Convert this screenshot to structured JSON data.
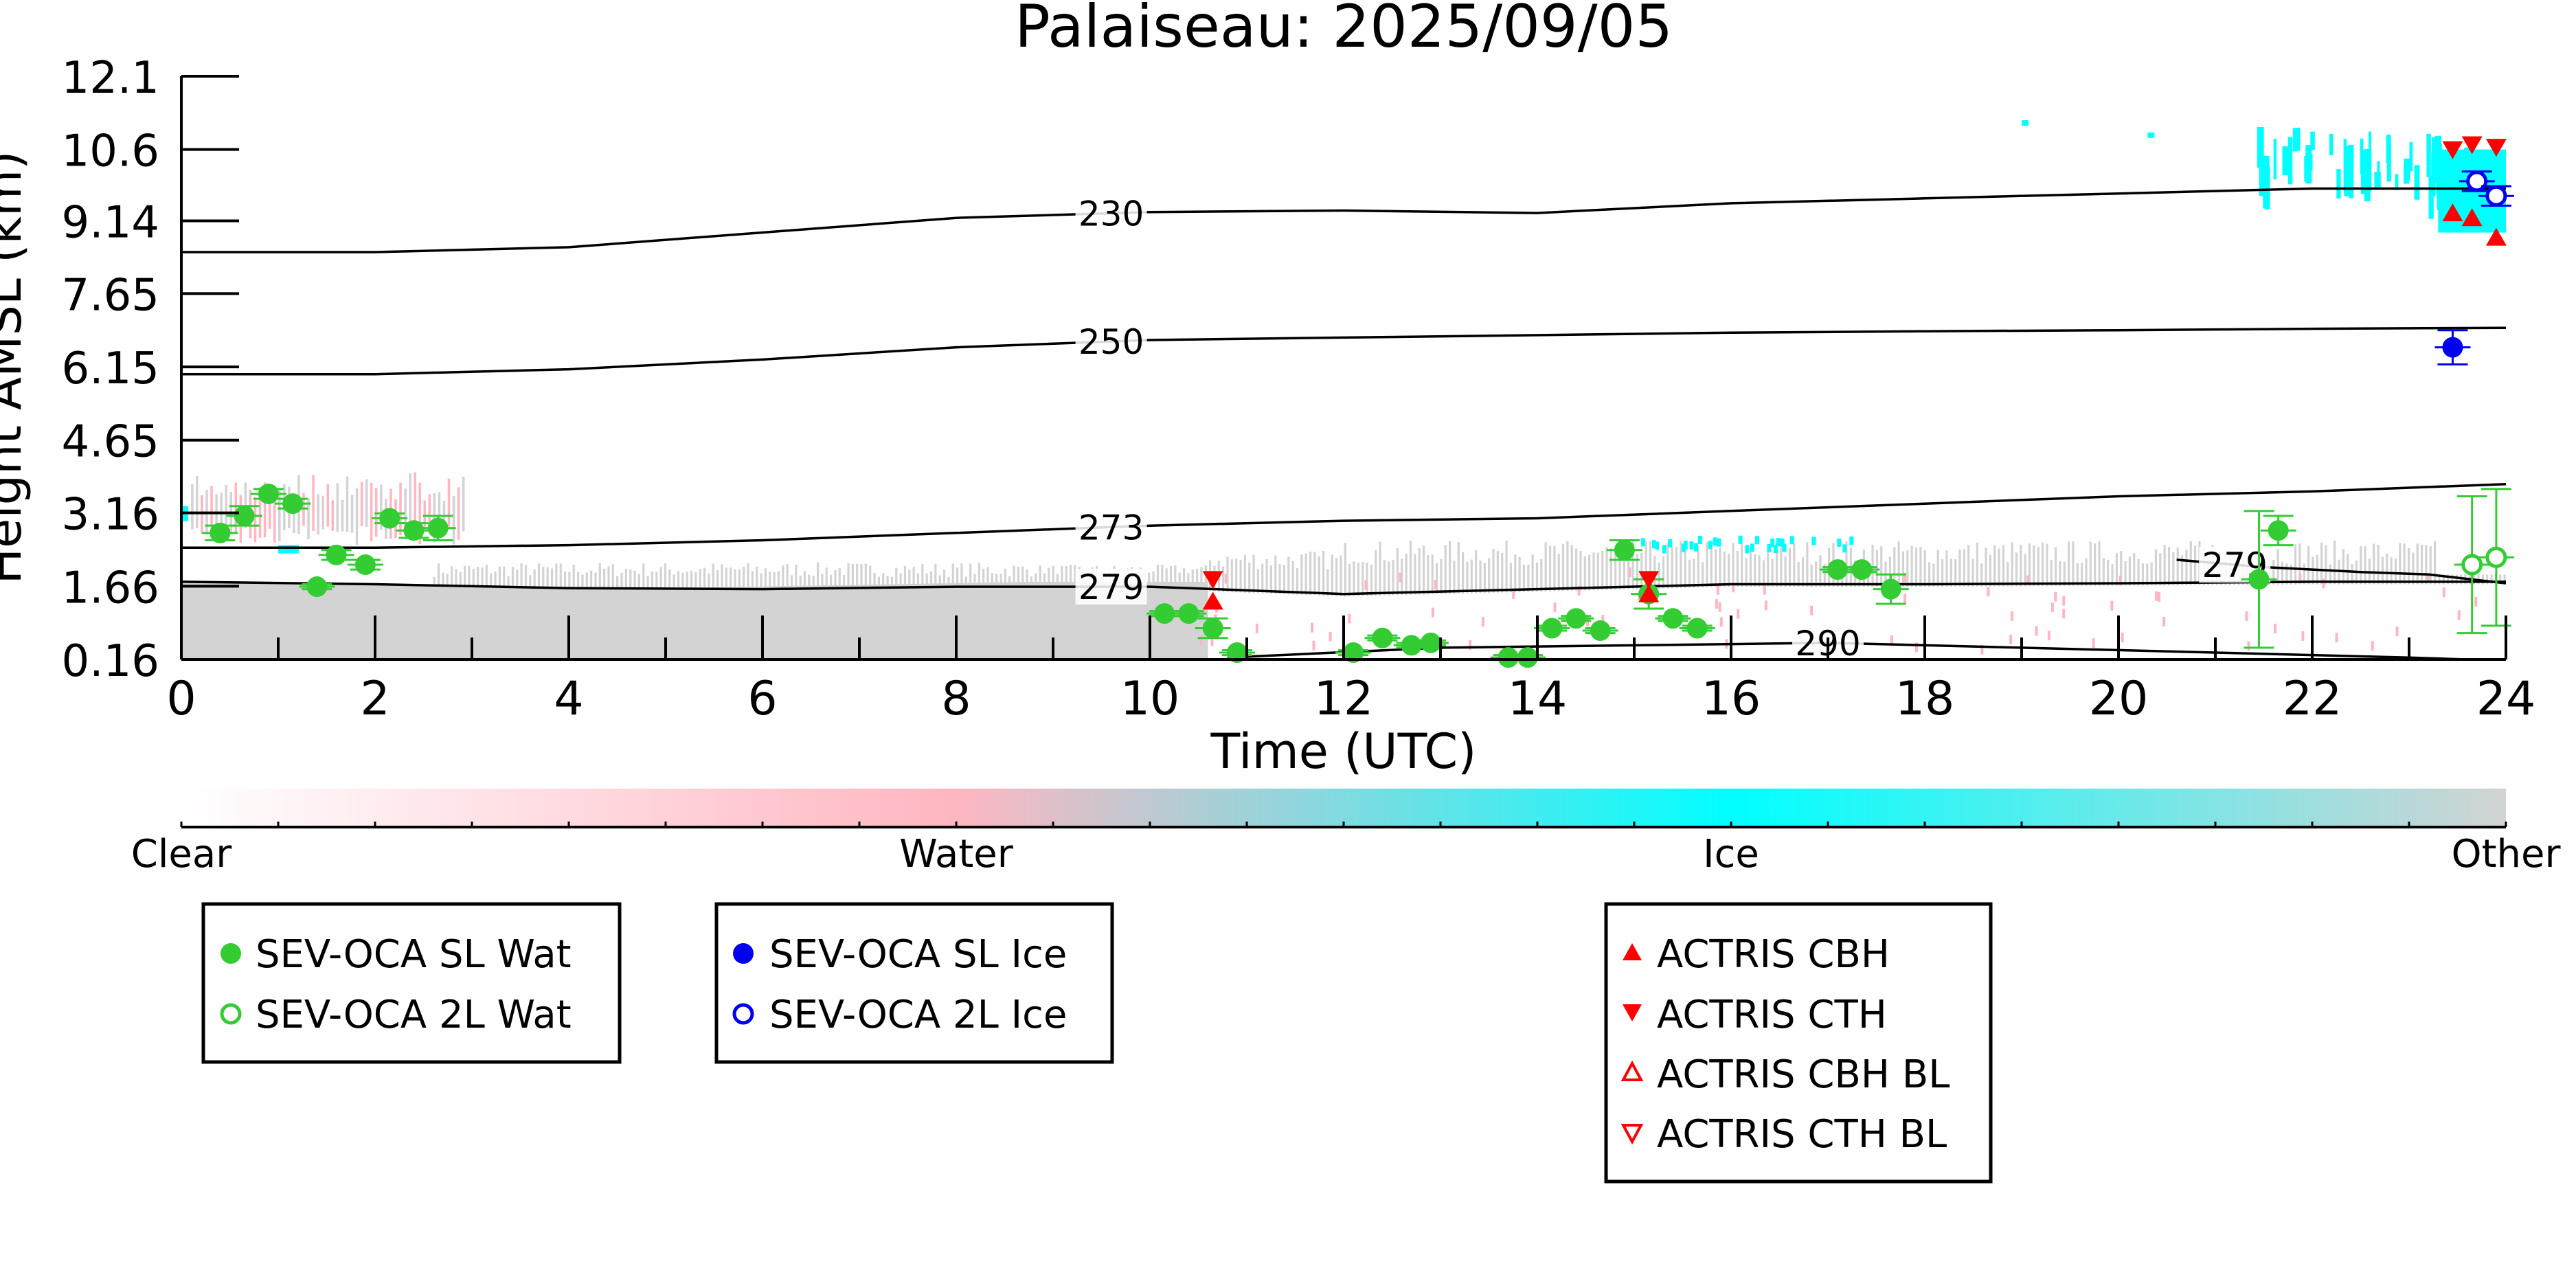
{
  "chart_data": {
    "type": "scatter",
    "title": "Palaiseau: 2025/09/05",
    "xlabel": "Time (UTC)",
    "ylabel": "Height AMSL (km)",
    "xlim": [
      0,
      24
    ],
    "ylim": [
      0.16,
      12.1
    ],
    "xticks": [
      0,
      2,
      4,
      6,
      8,
      10,
      12,
      14,
      16,
      18,
      20,
      22,
      24
    ],
    "xtick_labels": [
      "0",
      "2",
      "4",
      "6",
      "8",
      "10",
      "12",
      "14",
      "16",
      "18",
      "20",
      "22",
      "24"
    ],
    "yticks": [
      0.16,
      1.66,
      3.16,
      4.65,
      6.15,
      7.65,
      9.14,
      10.6,
      12.1
    ],
    "ytick_labels": [
      "0.16",
      "1.66",
      "3.16",
      "4.65",
      "6.15",
      "7.65",
      "9.14",
      "10.6",
      "12.1"
    ],
    "grid": false,
    "contours": [
      {
        "label": "230",
        "label_x": 9.6,
        "points": [
          [
            0,
            8.5
          ],
          [
            2,
            8.5
          ],
          [
            4,
            8.6
          ],
          [
            6,
            8.9
          ],
          [
            8,
            9.2
          ],
          [
            10,
            9.32
          ],
          [
            12,
            9.35
          ],
          [
            14,
            9.3
          ],
          [
            16,
            9.5
          ],
          [
            18,
            9.6
          ],
          [
            20,
            9.7
          ],
          [
            22,
            9.8
          ],
          [
            24,
            9.8
          ]
        ]
      },
      {
        "label": "250",
        "label_x": 9.6,
        "points": [
          [
            0,
            6.0
          ],
          [
            2,
            6.0
          ],
          [
            4,
            6.1
          ],
          [
            6,
            6.3
          ],
          [
            8,
            6.55
          ],
          [
            10,
            6.7
          ],
          [
            12,
            6.75
          ],
          [
            14,
            6.8
          ],
          [
            16,
            6.85
          ],
          [
            18,
            6.88
          ],
          [
            20,
            6.9
          ],
          [
            22,
            6.93
          ],
          [
            24,
            6.95
          ]
        ]
      },
      {
        "label": "273",
        "label_x": 9.6,
        "points": [
          [
            0,
            2.45
          ],
          [
            2,
            2.45
          ],
          [
            4,
            2.5
          ],
          [
            6,
            2.6
          ],
          [
            8,
            2.75
          ],
          [
            10,
            2.9
          ],
          [
            12,
            3.0
          ],
          [
            14,
            3.05
          ],
          [
            16,
            3.2
          ],
          [
            18,
            3.35
          ],
          [
            20,
            3.5
          ],
          [
            22,
            3.6
          ],
          [
            24,
            3.75
          ]
        ]
      },
      {
        "label": "279",
        "label_x": 9.6,
        "points": [
          [
            0,
            1.75
          ],
          [
            2,
            1.7
          ],
          [
            4,
            1.62
          ],
          [
            6,
            1.6
          ],
          [
            8,
            1.65
          ],
          [
            10,
            1.65
          ],
          [
            12,
            1.5
          ],
          [
            14,
            1.6
          ],
          [
            16,
            1.7
          ],
          [
            18,
            1.7
          ],
          [
            20,
            1.72
          ],
          [
            22,
            1.75
          ],
          [
            24,
            1.75
          ]
        ]
      },
      {
        "label": "279",
        "label_x": 21.2,
        "points": [
          [
            20.6,
            2.2
          ],
          [
            21.5,
            2.05
          ],
          [
            22.5,
            1.95
          ],
          [
            23.2,
            1.9
          ],
          [
            24,
            1.72
          ]
        ]
      },
      {
        "label": "290",
        "label_x": 17.0,
        "points": [
          [
            10.8,
            0.2
          ],
          [
            13,
            0.4
          ],
          [
            15,
            0.45
          ],
          [
            17,
            0.5
          ],
          [
            19,
            0.4
          ],
          [
            21,
            0.3
          ],
          [
            23,
            0.2
          ],
          [
            23.6,
            0.16
          ]
        ]
      }
    ],
    "legend_colorbar": {
      "labels": [
        "Clear",
        "Water",
        "Ice",
        "Other"
      ],
      "colors": [
        "#ffffff",
        "#ffb6c1",
        "#00ffff",
        "#d3d3d3"
      ]
    },
    "colors": {
      "sl_water": "#33cc33",
      "sl_ice": "#0000ee",
      "actris": "#ff0000",
      "cloud_other": "#d3d3d3",
      "cloud_ice": "#00ffff",
      "cloud_water": "#ffb6c1"
    },
    "series": [
      {
        "name": "SEV-OCA SL Wat",
        "marker": "filled-circle",
        "color": "#33cc33",
        "points": [
          [
            0.4,
            2.75,
            0.15
          ],
          [
            0.65,
            3.1,
            0.2
          ],
          [
            0.9,
            3.55,
            0.1
          ],
          [
            1.15,
            3.35,
            0.1
          ],
          [
            1.4,
            1.65,
            0.05
          ],
          [
            1.6,
            2.3,
            0.1
          ],
          [
            1.9,
            2.1,
            0.1
          ],
          [
            2.15,
            3.05,
            0.1
          ],
          [
            2.4,
            2.8,
            0.15
          ],
          [
            2.65,
            2.85,
            0.25
          ],
          [
            10.15,
            1.1,
            0.05
          ],
          [
            10.4,
            1.1,
            0.05
          ],
          [
            10.65,
            0.8,
            0.2
          ],
          [
            10.9,
            0.3,
            0.05
          ],
          [
            12.1,
            0.3,
            0.05
          ],
          [
            12.4,
            0.6,
            0.05
          ],
          [
            12.7,
            0.45,
            0.05
          ],
          [
            12.9,
            0.5,
            0.05
          ],
          [
            13.7,
            0.2,
            0.05
          ],
          [
            13.9,
            0.2,
            0.05
          ],
          [
            14.15,
            0.8,
            0.05
          ],
          [
            14.4,
            1.0,
            0.05
          ],
          [
            14.65,
            0.75,
            0.05
          ],
          [
            14.9,
            2.4,
            0.2
          ],
          [
            15.15,
            1.5,
            0.3
          ],
          [
            15.4,
            1.0,
            0.05
          ],
          [
            15.65,
            0.8,
            0.05
          ],
          [
            17.1,
            2.0,
            0.05
          ],
          [
            17.35,
            2.0,
            0.05
          ],
          [
            17.65,
            1.6,
            0.3
          ],
          [
            21.45,
            1.8,
            1.4
          ],
          [
            21.65,
            2.8,
            0.3
          ]
        ]
      },
      {
        "name": "SEV-OCA 2L Wat",
        "marker": "open-circle",
        "color": "#33cc33",
        "points": [
          [
            23.65,
            2.1,
            1.4
          ],
          [
            23.9,
            2.25,
            1.4
          ]
        ]
      },
      {
        "name": "SEV-OCA SL Ice",
        "marker": "filled-circle",
        "color": "#0000ee",
        "points": [
          [
            23.45,
            6.55,
            0.35
          ]
        ]
      },
      {
        "name": "SEV-OCA 2L Ice",
        "marker": "open-circle",
        "color": "#0000ee",
        "points": [
          [
            23.7,
            9.95,
            0.2
          ],
          [
            23.9,
            9.65,
            0.2
          ]
        ]
      },
      {
        "name": "ACTRIS CBH",
        "marker": "triangle-up",
        "color": "#ff0000",
        "points": [
          [
            10.65,
            1.35
          ],
          [
            15.15,
            1.5
          ],
          [
            23.45,
            9.3
          ],
          [
            23.65,
            9.2
          ],
          [
            23.9,
            8.8
          ]
        ]
      },
      {
        "name": "ACTRIS CTH",
        "marker": "triangle-down",
        "color": "#ff0000",
        "points": [
          [
            10.65,
            1.8
          ],
          [
            15.15,
            1.8
          ],
          [
            23.45,
            10.6
          ],
          [
            23.65,
            10.7
          ],
          [
            23.9,
            10.65
          ]
        ]
      },
      {
        "name": "ACTRIS CBH BL",
        "marker": "open-triangle-up",
        "color": "#ff0000",
        "points": []
      },
      {
        "name": "ACTRIS CTH BL",
        "marker": "open-triangle-down",
        "color": "#ff0000",
        "points": []
      }
    ]
  },
  "legends": {
    "box1": [
      "SEV-OCA SL Wat",
      "SEV-OCA 2L Wat"
    ],
    "box2": [
      "SEV-OCA SL Ice",
      "SEV-OCA 2L Ice"
    ],
    "box3": [
      "ACTRIS CBH",
      "ACTRIS CTH",
      "ACTRIS CBH BL",
      "ACTRIS CTH BL"
    ]
  }
}
